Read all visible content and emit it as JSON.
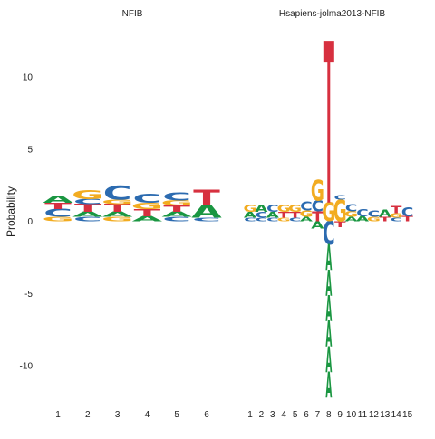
{
  "chart_data": {
    "type": "sequence-logo",
    "ylabel": "Probability",
    "ylim": [
      -12,
      12.5
    ],
    "yticks": [
      -10,
      -5,
      0,
      5,
      10
    ],
    "colors": {
      "A": "#1a9641",
      "C": "#2c6bb0",
      "G": "#f2ac21",
      "T": "#d7303f"
    },
    "panels": [
      {
        "title": "NFIB",
        "xticks": [
          "1",
          "2",
          "3",
          "4",
          "5",
          "6"
        ],
        "positions": [
          {
            "pos": 1,
            "stack": [
              [
                "G",
                0.3
              ],
              [
                "C",
                0.55
              ],
              [
                "T",
                0.45
              ],
              [
                "A",
                0.5
              ]
            ]
          },
          {
            "pos": 2,
            "stack": [
              [
                "C",
                0.3
              ],
              [
                "A",
                0.35
              ],
              [
                "T",
                0.55
              ],
              [
                "C",
                0.35
              ],
              [
                "G",
                0.6
              ]
            ]
          },
          {
            "pos": 3,
            "stack": [
              [
                "G",
                0.3
              ],
              [
                "A",
                0.35
              ],
              [
                "T",
                0.55
              ],
              [
                "G",
                0.3
              ],
              [
                "C",
                0.95
              ]
            ]
          },
          {
            "pos": 4,
            "stack": [
              [
                "A",
                0.35
              ],
              [
                "T",
                0.5
              ],
              [
                "G",
                0.45
              ],
              [
                "C",
                0.6
              ]
            ]
          },
          {
            "pos": 5,
            "stack": [
              [
                "C",
                0.3
              ],
              [
                "A",
                0.35
              ],
              [
                "T",
                0.45
              ],
              [
                "G",
                0.35
              ],
              [
                "C",
                0.55
              ]
            ]
          },
          {
            "pos": 6,
            "stack": [
              [
                "C",
                0.25
              ],
              [
                "A",
                0.9
              ],
              [
                "T",
                1.0
              ]
            ]
          }
        ]
      },
      {
        "title": "Hsapiens-jolma2013-NFIB",
        "xticks": [
          "1",
          "2",
          "3",
          "4",
          "5",
          "6",
          "7",
          "8",
          "9",
          "10",
          "11",
          "12",
          "13",
          "14",
          "15"
        ],
        "positions": [
          {
            "pos": 1,
            "stack": [
              [
                "C",
                0.25
              ],
              [
                "A",
                0.4
              ],
              [
                "G",
                0.5
              ]
            ]
          },
          {
            "pos": 2,
            "stack": [
              [
                "C",
                0.25
              ],
              [
                "C",
                0.4
              ],
              [
                "A",
                0.5
              ]
            ]
          },
          {
            "pos": 3,
            "stack": [
              [
                "C",
                0.25
              ],
              [
                "A",
                0.4
              ],
              [
                "C",
                0.5
              ]
            ]
          },
          {
            "pos": 4,
            "stack": [
              [
                "G",
                0.25
              ],
              [
                "T",
                0.4
              ],
              [
                "G",
                0.5
              ]
            ]
          },
          {
            "pos": 5,
            "stack": [
              [
                "C",
                0.25
              ],
              [
                "T",
                0.4
              ],
              [
                "G",
                0.5
              ]
            ]
          },
          {
            "pos": 6,
            "stack": [
              [
                "A",
                0.3
              ],
              [
                "G",
                0.45
              ],
              [
                "C",
                0.6
              ]
            ]
          },
          {
            "pos": 7,
            "stack": [
              [
                "A",
                -0.5
              ],
              [
                "T",
                0.7
              ],
              [
                "C",
                0.75
              ],
              [
                "G",
                1.4
              ]
            ]
          },
          {
            "pos": 8,
            "stack": [
              [
                "C",
                -1.6
              ],
              [
                "G",
                1.3
              ],
              [
                "T",
                11.2
              ]
            ],
            "negative_C": -10.6
          },
          {
            "pos": 9,
            "stack": [
              [
                "T",
                -0.4
              ],
              [
                "G",
                1.5
              ],
              [
                "C",
                0.3
              ]
            ]
          },
          {
            "pos": 10,
            "stack": [
              [
                "A",
                0.3
              ],
              [
                "G",
                0.4
              ],
              [
                "C",
                0.5
              ]
            ]
          },
          {
            "pos": 11,
            "stack": [
              [
                "A",
                0.35
              ],
              [
                "C",
                0.5
              ]
            ]
          },
          {
            "pos": 12,
            "stack": [
              [
                "G",
                0.3
              ],
              [
                "C",
                0.45
              ]
            ]
          },
          {
            "pos": 13,
            "stack": [
              [
                "T",
                0.3
              ],
              [
                "A",
                0.5
              ]
            ]
          },
          {
            "pos": 14,
            "stack": [
              [
                "C",
                0.25
              ],
              [
                "G",
                0.3
              ],
              [
                "T",
                0.5
              ]
            ]
          },
          {
            "pos": 15,
            "stack": [
              [
                "T",
                0.35
              ],
              [
                "C",
                0.6
              ]
            ]
          }
        ]
      }
    ]
  }
}
